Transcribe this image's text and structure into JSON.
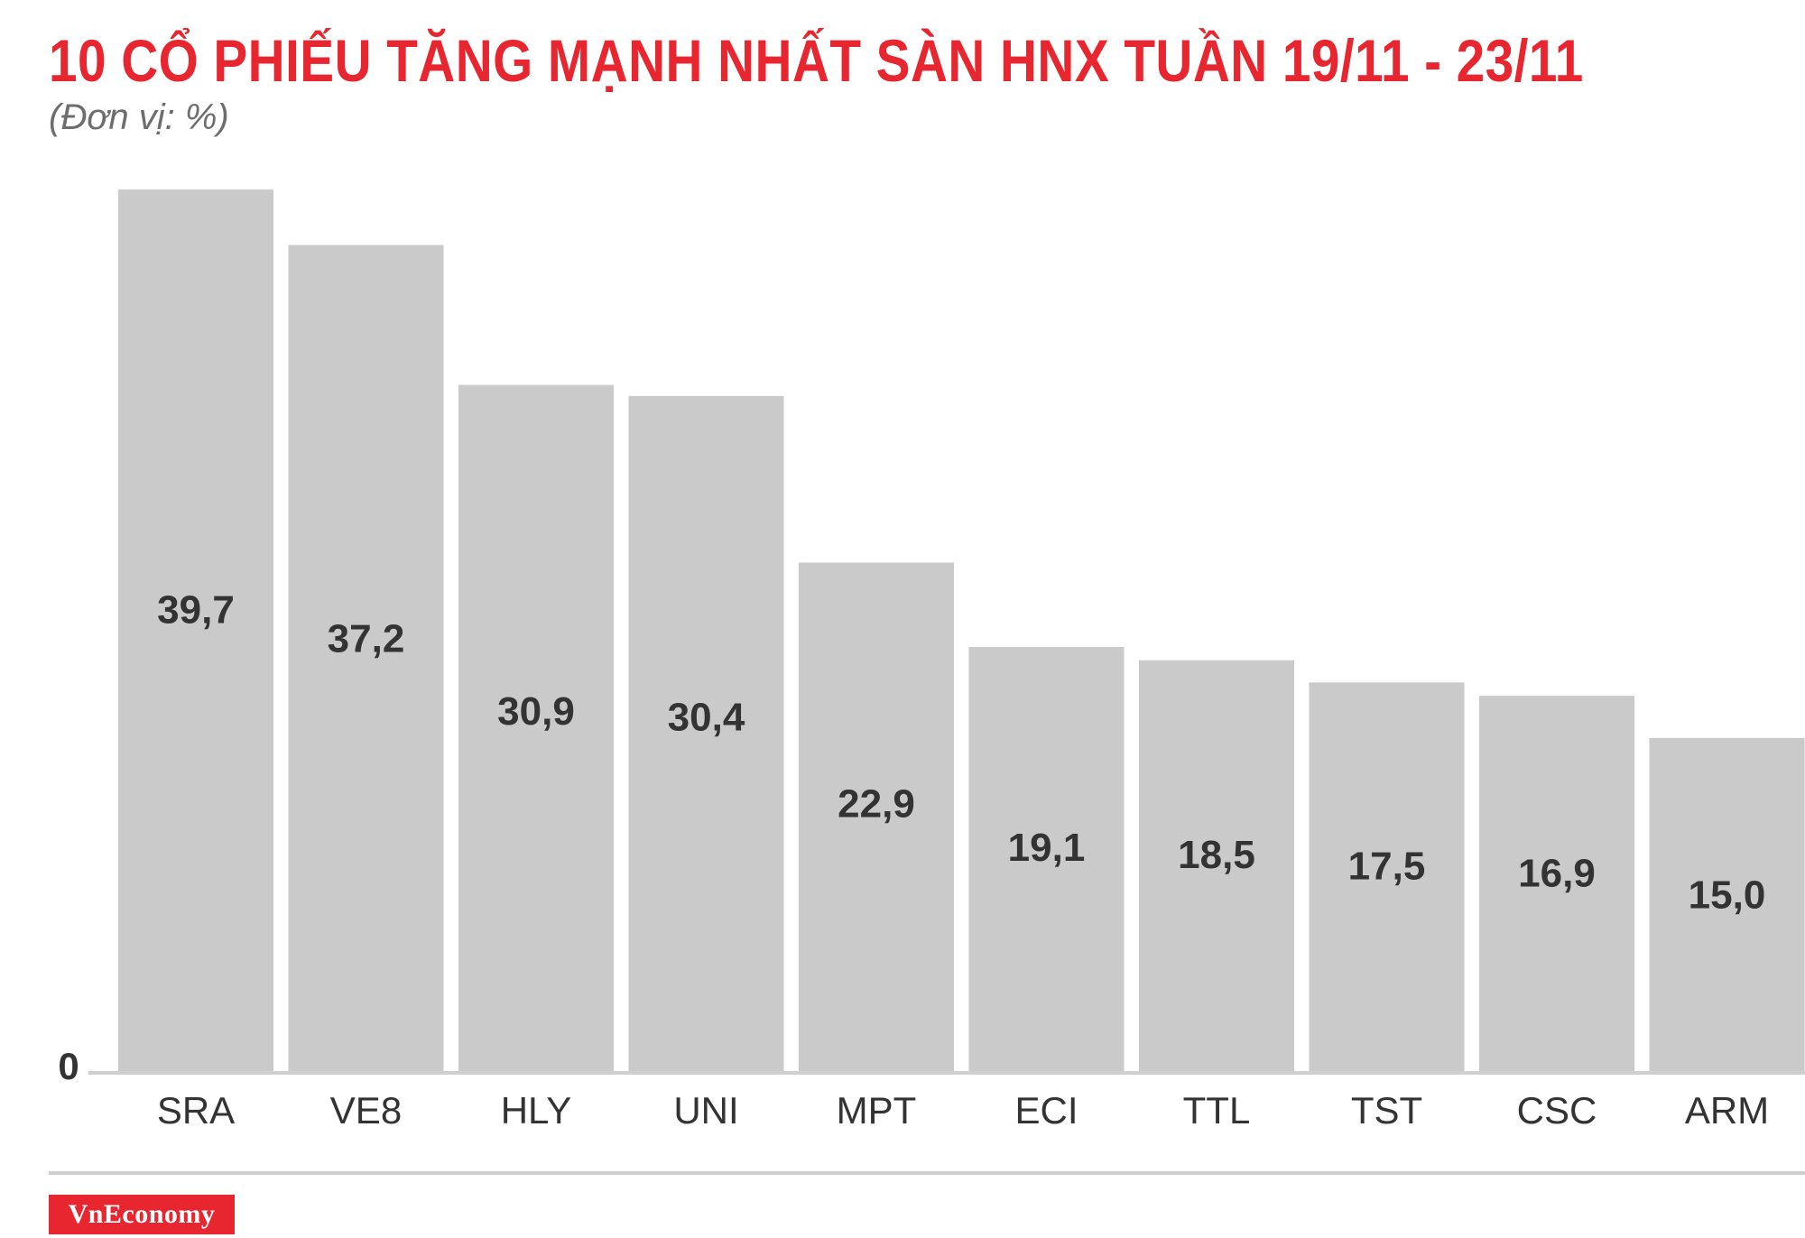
{
  "title": "10 CỔ PHIẾU TĂNG MẠNH NHẤT SÀN HNX TUẦN 19/11 - 23/11",
  "subtitle": "(Đơn vị: %)",
  "brand": "VnEconomy",
  "colors": {
    "title": "#e8262f",
    "bar": "#cbcacb",
    "axis": "#cfcfcf",
    "text": "#333333",
    "brand_bg": "#e8262f"
  },
  "chart_data": {
    "type": "bar",
    "categories": [
      "SRA",
      "VE8",
      "HLY",
      "UNI",
      "MPT",
      "ECI",
      "TTL",
      "TST",
      "CSC",
      "ARM"
    ],
    "values": [
      39.7,
      37.2,
      30.9,
      30.4,
      22.9,
      19.1,
      18.5,
      17.5,
      16.9,
      15.0
    ],
    "value_labels": [
      "39,7",
      "37,2",
      "30,9",
      "30,4",
      "22,9",
      "19,1",
      "18,5",
      "17,5",
      "16,9",
      "15,0"
    ],
    "y_tick_labels": [
      "0"
    ],
    "ylim": [
      0,
      39.7
    ],
    "grid": false,
    "legend": "none"
  }
}
